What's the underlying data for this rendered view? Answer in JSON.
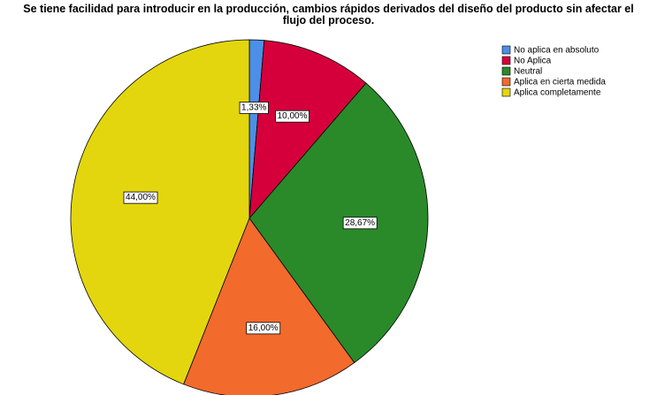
{
  "chart_data": {
    "type": "pie",
    "title": "Se tiene facilidad para introducir en la producción, cambios rápidos derivados del diseño del producto sin afectar el flujo del proceso.",
    "categories": [
      "No aplica en absoluto",
      "No Aplica",
      "Neutral",
      "Aplica en cierta medida",
      "Aplica completamente"
    ],
    "values": [
      1.33,
      10.0,
      28.67,
      16.0,
      44.0
    ],
    "value_labels": [
      "1,33%",
      "10,00%",
      "28,67%",
      "16,00%",
      "44,00%"
    ],
    "colors": [
      "#4d8fe6",
      "#d5003b",
      "#2a8a2a",
      "#f26a2c",
      "#e3d60e"
    ],
    "legend": "right"
  }
}
